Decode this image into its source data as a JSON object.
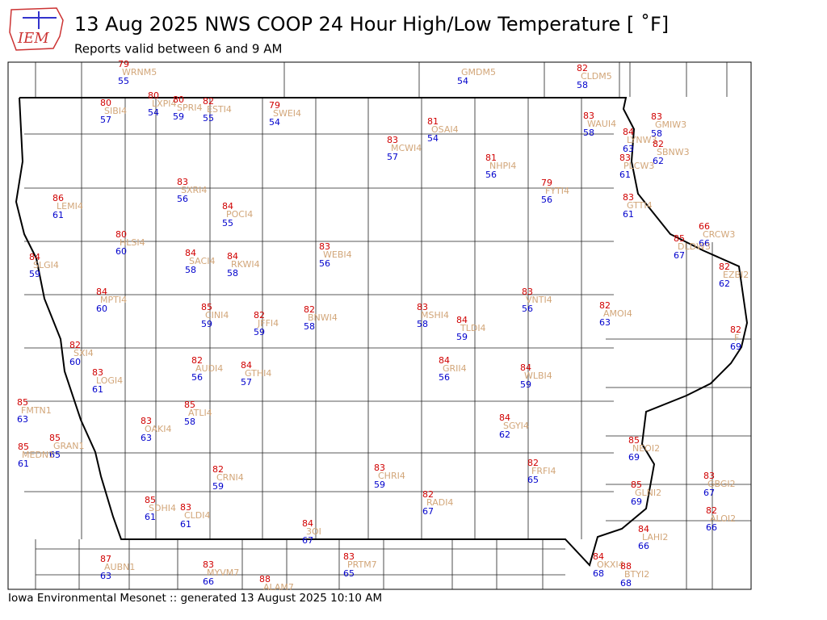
{
  "logo": "IEM",
  "header": {
    "title": "13 Aug 2025 NWS COOP 24 Hour High/Low Temperature [ ˚F]",
    "subtitle": "Reports valid between 6 and 9 AM"
  },
  "footer": "Iowa Environmental Mesonet :: generated 13 August 2025 10:10 AM",
  "stations": [
    {
      "id": "WRNM5",
      "high": 79,
      "low": 55
    },
    {
      "id": "GMDM5",
      "high": null,
      "low": 54
    },
    {
      "id": "CLDM5",
      "high": 82,
      "low": 58
    },
    {
      "id": "SIBI4",
      "high": 80,
      "low": 57
    },
    {
      "id": "LXPI4",
      "high": 80,
      "low": 54
    },
    {
      "id": "SPRI4",
      "high": 80,
      "low": 59
    },
    {
      "id": "ESTI4",
      "high": 82,
      "low": 55
    },
    {
      "id": "SWEI4",
      "high": 79,
      "low": 54
    },
    {
      "id": "OSAI4",
      "high": 81,
      "low": 54
    },
    {
      "id": "WAUI4",
      "high": 83,
      "low": 58
    },
    {
      "id": "GMIW3",
      "high": 83,
      "low": 58
    },
    {
      "id": "LYNW3",
      "high": 84,
      "low": 63
    },
    {
      "id": "SBNW3",
      "high": 82,
      "low": 62
    },
    {
      "id": "PLCW3",
      "high": 83,
      "low": 61
    },
    {
      "id": "MCWI4",
      "high": 83,
      "low": 57
    },
    {
      "id": "NHPI4",
      "high": 81,
      "low": 56
    },
    {
      "id": "FYTI4",
      "high": 79,
      "low": 56
    },
    {
      "id": "SXRI4",
      "high": 83,
      "low": 56
    },
    {
      "id": "LEMI4",
      "high": 86,
      "low": 61
    },
    {
      "id": "POCI4",
      "high": 84,
      "low": 55
    },
    {
      "id": "GTTI4",
      "high": 83,
      "low": 61
    },
    {
      "id": "CRCW3",
      "high": 66,
      "low": 66
    },
    {
      "id": "DLDW3",
      "high": 85,
      "low": 67
    },
    {
      "id": "HLSI4",
      "high": 80,
      "low": 60
    },
    {
      "id": "SLGI4",
      "high": 84,
      "low": 59
    },
    {
      "id": "SACI4",
      "high": 84,
      "low": 58
    },
    {
      "id": "RKWI4",
      "high": 84,
      "low": 58
    },
    {
      "id": "WEBI4",
      "high": 83,
      "low": 56
    },
    {
      "id": "EZBI2",
      "high": 82,
      "low": 62
    },
    {
      "id": "MPTI4",
      "high": 84,
      "low": 60
    },
    {
      "id": "VNTI4",
      "high": 83,
      "low": 56
    },
    {
      "id": "CINI4",
      "high": 85,
      "low": 59
    },
    {
      "id": "JFFI4",
      "high": 82,
      "low": 59
    },
    {
      "id": "BNWI4",
      "high": 82,
      "low": 58
    },
    {
      "id": "MSHI4",
      "high": 83,
      "low": 58
    },
    {
      "id": "TLDI4",
      "high": 84,
      "low": 59
    },
    {
      "id": "AMOI4",
      "high": 82,
      "low": 63
    },
    {
      "id": "F",
      "high": 82,
      "low": 69
    },
    {
      "id": "SXI4",
      "high": 82,
      "low": 60
    },
    {
      "id": "AUDI4",
      "high": 82,
      "low": 56
    },
    {
      "id": "GTHI4",
      "high": 84,
      "low": 57
    },
    {
      "id": "GRII4",
      "high": 84,
      "low": 56
    },
    {
      "id": "WLBI4",
      "high": 84,
      "low": 59
    },
    {
      "id": "LOGI4",
      "high": 83,
      "low": 61
    },
    {
      "id": "FMTN1",
      "high": 85,
      "low": 63
    },
    {
      "id": "ATLI4",
      "high": 85,
      "low": 58
    },
    {
      "id": "OAKI4",
      "high": 83,
      "low": 63
    },
    {
      "id": "SGYI4",
      "high": 84,
      "low": 62
    },
    {
      "id": "GRAN1",
      "high": 85,
      "low": 65
    },
    {
      "id": "MEDN1",
      "high": 85,
      "low": 61
    },
    {
      "id": "NEOI2",
      "high": 85,
      "low": 69
    },
    {
      "id": "CRNI4",
      "high": 82,
      "low": 59
    },
    {
      "id": "CHRI4",
      "high": 83,
      "low": 59
    },
    {
      "id": "FRFI4",
      "high": 82,
      "low": 65
    },
    {
      "id": "GBGI2",
      "high": 83,
      "low": 67
    },
    {
      "id": "GLNI2",
      "high": 85,
      "low": 69
    },
    {
      "id": "SDHI4",
      "high": 85,
      "low": 61
    },
    {
      "id": "CLDI4",
      "high": 83,
      "low": 61
    },
    {
      "id": "RADI4",
      "high": 82,
      "low": 67
    },
    {
      "id": "ALOI2",
      "high": 82,
      "low": 66
    },
    {
      "id": "3OI",
      "high": 84,
      "low": 67
    },
    {
      "id": "LAHI2",
      "high": 84,
      "low": 66
    },
    {
      "id": "AUBN1",
      "high": 87,
      "low": 63
    },
    {
      "id": "MYVM7",
      "high": 83,
      "low": 66
    },
    {
      "id": "ALAM7",
      "high": 88,
      "low": null
    },
    {
      "id": "PRTM7",
      "high": 83,
      "low": 65
    },
    {
      "id": "OKXI4",
      "high": 84,
      "low": 68
    },
    {
      "id": "BTYI2",
      "high": 88,
      "low": 68
    }
  ]
}
